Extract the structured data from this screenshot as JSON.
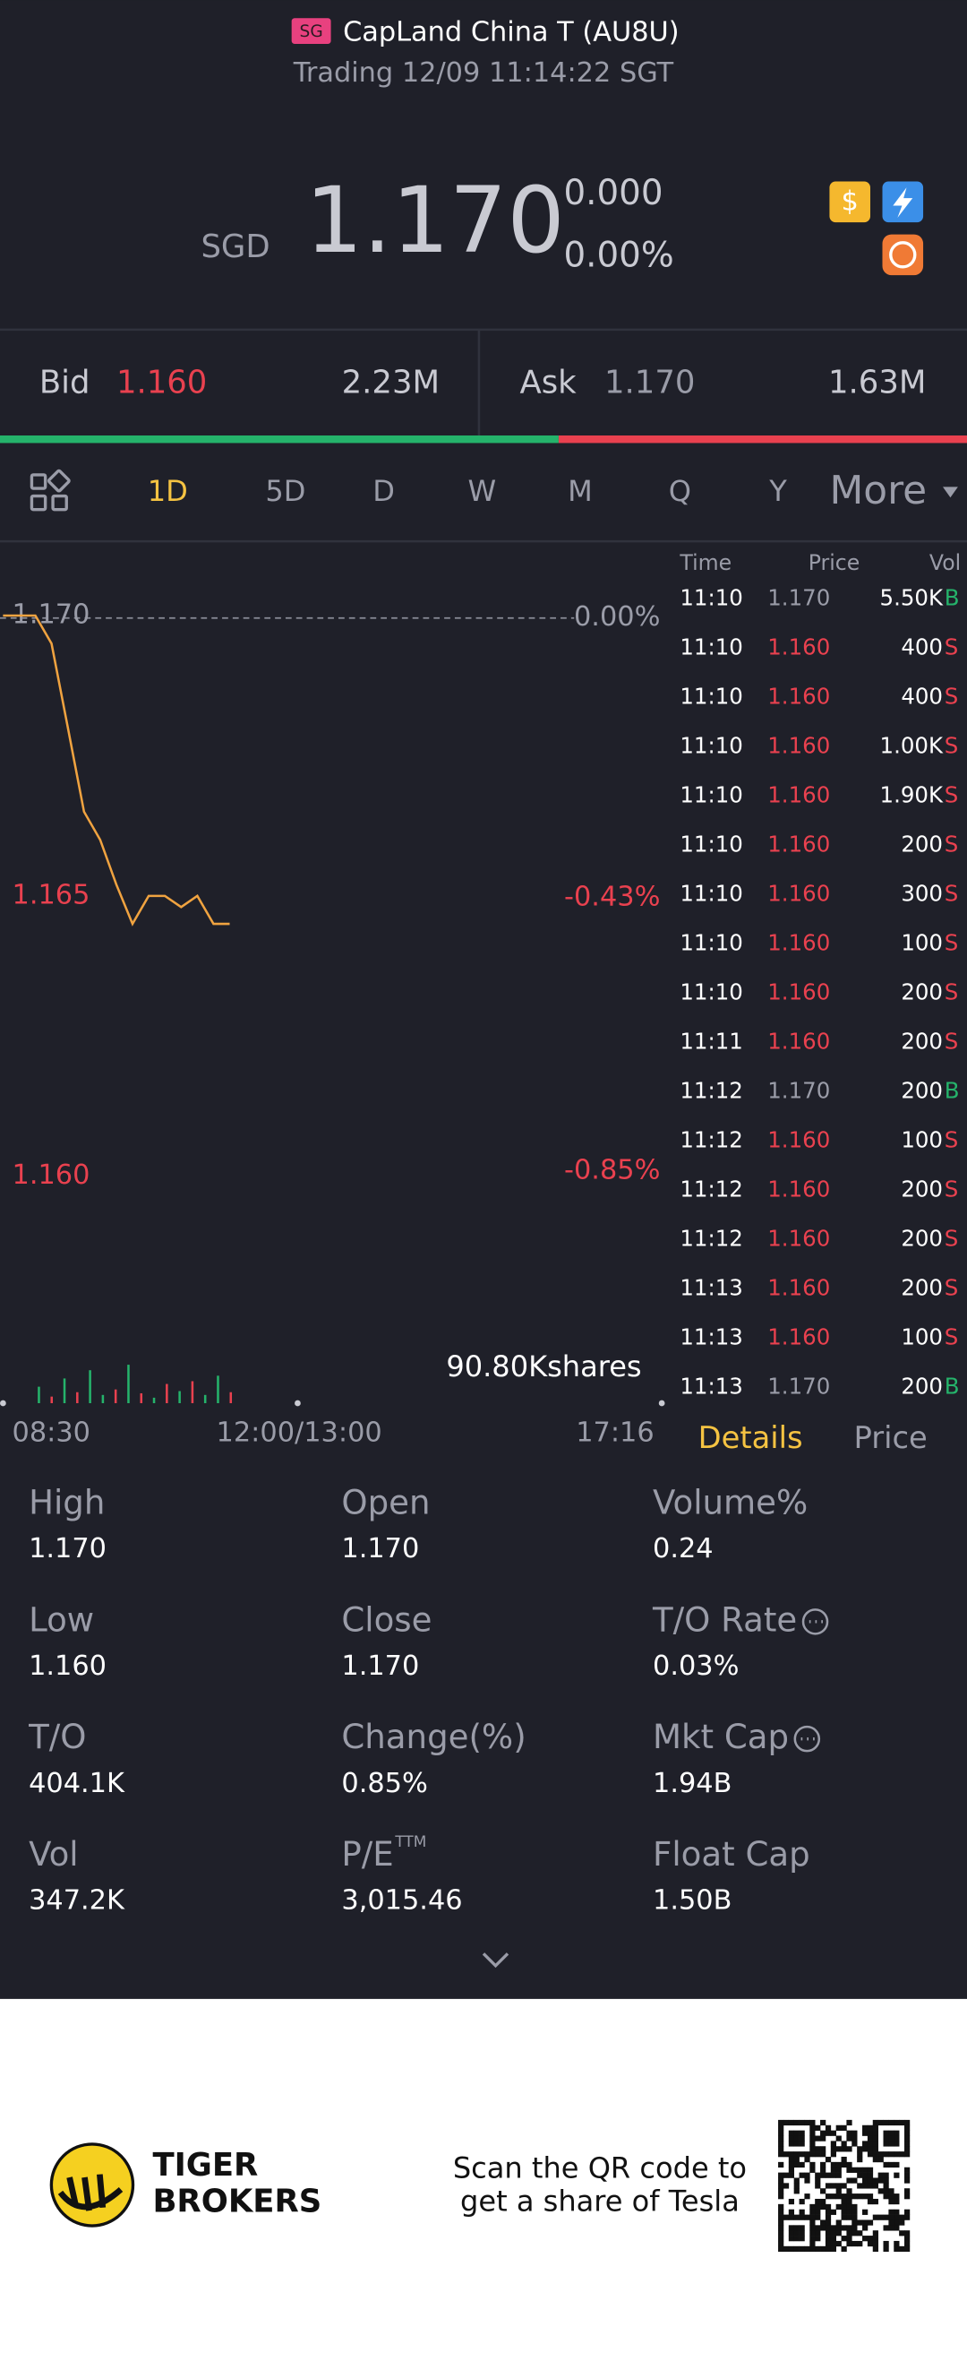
{
  "header": {
    "badge": "SG",
    "title": "CapLand China T (AU8U)",
    "status": "Trading 12/09 11:14:22 SGT"
  },
  "quote": {
    "currency": "SGD",
    "price": "1.170",
    "change": "0.000",
    "change_pct": "0.00%"
  },
  "book": {
    "bid_label": "Bid",
    "bid_price": "1.160",
    "bid_size": {
      "value": 2230000,
      "label": "2.23M"
    },
    "ask_label": "Ask",
    "ask_price": "1.170",
    "ask_size": {
      "value": 1630000,
      "label": "1.63M"
    }
  },
  "periods": {
    "items": [
      "1D",
      "5D",
      "D",
      "W",
      "M",
      "Q",
      "Y",
      "More"
    ],
    "active": 0
  },
  "chart_data": {
    "type": "line",
    "values": [
      1.17,
      1.17,
      1.17,
      1.1695,
      1.168,
      1.1665,
      1.166,
      1.1652,
      1.1645,
      1.165,
      1.165,
      1.1648,
      1.165,
      1.1645,
      1.1645
    ],
    "color": "#f0a340",
    "ylim": [
      1.158,
      1.171
    ],
    "yticks": [
      {
        "value": 1.17,
        "label": "1.170"
      },
      {
        "value": 1.165,
        "label": "1.165"
      },
      {
        "value": 1.16,
        "label": "1.160"
      }
    ],
    "y2lim": [
      -1.03,
      0.09
    ],
    "y2ticks": [
      {
        "value": 0,
        "label": "0.00%"
      },
      {
        "value": -0.43,
        "label": "-0.43%"
      },
      {
        "value": -0.85,
        "label": "-0.85%"
      }
    ],
    "xticks": [
      "08:30",
      "12:00/13:00",
      "17:16"
    ],
    "reference_line": true,
    "volume": {
      "values": [
        30000,
        12000,
        45000,
        20000,
        60000,
        15000,
        25000,
        70000,
        18000,
        10000,
        35000,
        22000,
        40000,
        15000,
        50000,
        20000
      ],
      "sides": [
        "B",
        "S",
        "B",
        "S",
        "B",
        "B",
        "S",
        "B",
        "S",
        "B",
        "S",
        "B",
        "S",
        "B",
        "B",
        "S"
      ],
      "vlim": [
        0,
        90800
      ],
      "vticks": [
        {
          "value": 90800,
          "label": "90.80Kshares"
        }
      ]
    }
  },
  "trades": {
    "columns": [
      "Time",
      "Price",
      "Vol"
    ],
    "rows": [
      {
        "time": "11:10",
        "price": "1.170",
        "vol": "5.50K",
        "side": "B"
      },
      {
        "time": "11:10",
        "price": "1.160",
        "vol": "400",
        "side": "S"
      },
      {
        "time": "11:10",
        "price": "1.160",
        "vol": "400",
        "side": "S"
      },
      {
        "time": "11:10",
        "price": "1.160",
        "vol": "1.00K",
        "side": "S"
      },
      {
        "time": "11:10",
        "price": "1.160",
        "vol": "1.90K",
        "side": "S"
      },
      {
        "time": "11:10",
        "price": "1.160",
        "vol": "200",
        "side": "S"
      },
      {
        "time": "11:10",
        "price": "1.160",
        "vol": "300",
        "side": "S"
      },
      {
        "time": "11:10",
        "price": "1.160",
        "vol": "100",
        "side": "S"
      },
      {
        "time": "11:10",
        "price": "1.160",
        "vol": "200",
        "side": "S"
      },
      {
        "time": "11:11",
        "price": "1.160",
        "vol": "200",
        "side": "S"
      },
      {
        "time": "11:12",
        "price": "1.170",
        "vol": "200",
        "side": "B"
      },
      {
        "time": "11:12",
        "price": "1.160",
        "vol": "100",
        "side": "S"
      },
      {
        "time": "11:12",
        "price": "1.160",
        "vol": "200",
        "side": "S"
      },
      {
        "time": "11:12",
        "price": "1.160",
        "vol": "200",
        "side": "S"
      },
      {
        "time": "11:13",
        "price": "1.160",
        "vol": "200",
        "side": "S"
      },
      {
        "time": "11:13",
        "price": "1.160",
        "vol": "100",
        "side": "S"
      },
      {
        "time": "11:13",
        "price": "1.170",
        "vol": "200",
        "side": "B"
      }
    ]
  },
  "detail_tabs": {
    "items": [
      "Details",
      "Price"
    ],
    "active": 0
  },
  "details": [
    {
      "label": "High",
      "value": "1.170"
    },
    {
      "label": "Open",
      "value": "1.170"
    },
    {
      "label": "Volume%",
      "value": "0.24"
    },
    {
      "label": "Low",
      "value": "1.160"
    },
    {
      "label": "Close",
      "value": "1.170"
    },
    {
      "label": "T/O Rate",
      "value": "0.03%",
      "info": true
    },
    {
      "label": "T/O",
      "value": "404.1K"
    },
    {
      "label": "Change(%)",
      "value": "0.85%"
    },
    {
      "label": "Mkt Cap",
      "value": "1.94B",
      "info": true
    },
    {
      "label": "Vol",
      "value": "347.2K"
    },
    {
      "label": "P/E",
      "sup": "TTM",
      "value": "3,015.46"
    },
    {
      "label": "Float Cap",
      "value": "1.50B"
    }
  ],
  "footer": {
    "brand": [
      "TIGER",
      "BROKERS"
    ],
    "promo": [
      "Scan the QR code to",
      "get a share of Tesla"
    ]
  },
  "colors": {
    "down": "#e9414f",
    "flat": "#9a9ca8",
    "buy": "#25b36b",
    "sell": "#e9414f",
    "active": "#f5c342"
  }
}
